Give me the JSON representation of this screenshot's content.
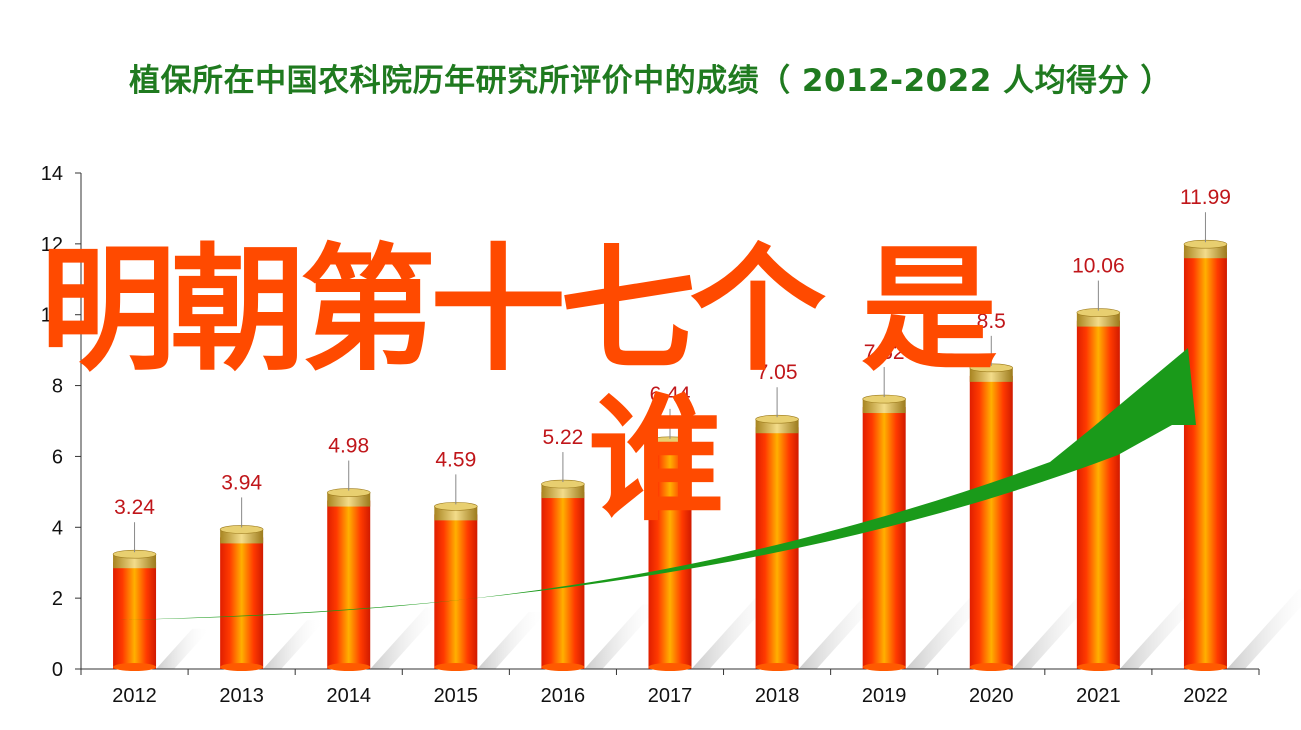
{
  "title": "植保所在中国农科院历年研究所评价中的成绩（ 2012-2022  人均得分 ）",
  "overlay": {
    "line1": "明朝第十七个 是",
    "line2": "谁"
  },
  "colors": {
    "bar_main": "#ff2a00",
    "bar_highlight": "#ffb400",
    "bar_cap": "#c9a227",
    "label": "#c0161a",
    "trend_arrow": "#1a9a1a"
  },
  "chart_data": {
    "type": "bar",
    "categories": [
      "2012",
      "2013",
      "2014",
      "2015",
      "2016",
      "2017",
      "2018",
      "2019",
      "2020",
      "2021",
      "2022"
    ],
    "values": [
      3.24,
      3.94,
      4.98,
      4.59,
      5.22,
      6.44,
      7.05,
      7.62,
      8.5,
      10.06,
      11.99
    ],
    "data_labels": [
      "3.24",
      "3.94",
      "4.98",
      "4.59",
      "5.22",
      "6.44",
      "7.05",
      "7.62",
      "8.5",
      "10.06",
      "11.99"
    ],
    "yticks": [
      "0",
      "2",
      "4",
      "6",
      "8",
      "10",
      "12",
      "14"
    ],
    "ylim": [
      0,
      14
    ],
    "xlabel": "",
    "ylabel": "",
    "grid": false,
    "legend": "none",
    "trend_arrow": "green upward curve"
  }
}
